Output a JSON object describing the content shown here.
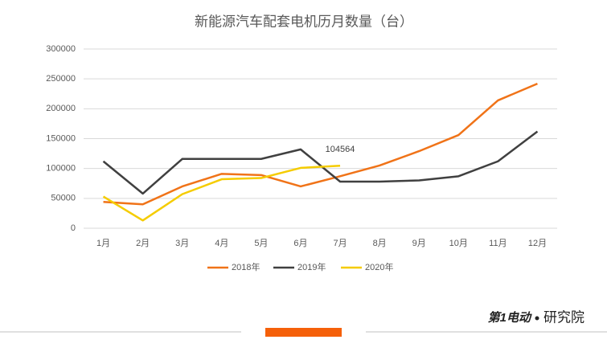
{
  "chart_data": {
    "type": "line",
    "title": "新能源汽车配套电机历月数量（台）",
    "categories": [
      "1月",
      "2月",
      "3月",
      "4月",
      "5月",
      "6月",
      "7月",
      "8月",
      "9月",
      "10月",
      "11月",
      "12月"
    ],
    "series": [
      {
        "name": "2018年",
        "color": "#f07318",
        "values": [
          44000,
          40000,
          70000,
          91000,
          89000,
          70000,
          87000,
          105000,
          129000,
          156000,
          214000,
          242000
        ]
      },
      {
        "name": "2019年",
        "color": "#404040",
        "values": [
          112000,
          58000,
          116000,
          116000,
          116000,
          132000,
          78000,
          78000,
          80000,
          87000,
          112000,
          162000
        ]
      },
      {
        "name": "2020年",
        "color": "#f5cc00",
        "values": [
          53000,
          13000,
          57000,
          82000,
          84000,
          101000,
          104564,
          null,
          null,
          null,
          null,
          null
        ]
      }
    ],
    "ylim": [
      0,
      300000
    ],
    "yticks": [
      0,
      50000,
      100000,
      150000,
      200000,
      250000,
      300000
    ],
    "grid": true,
    "legend": "bottom",
    "brand": "第1电动",
    "brand_suffix": "研究院"
  }
}
